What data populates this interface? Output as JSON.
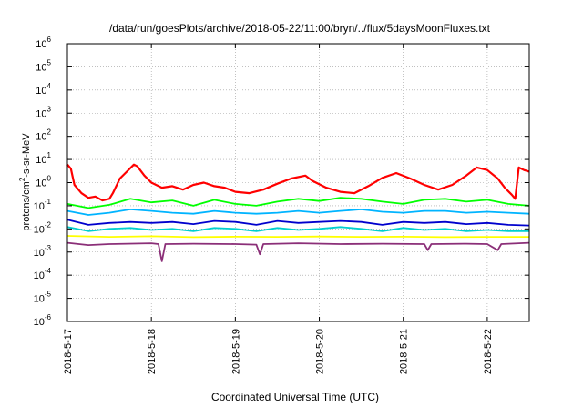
{
  "chart_data": {
    "type": "line",
    "title": "/data/run/goesPlots/archive/2018-05-22/11:00/bryn/../flux/5daysMoonFluxes.txt",
    "xlabel": "Coordinated Universal Time (UTC)",
    "ylabel_parts": [
      "protons/cm",
      "2",
      "-s-sr-MeV"
    ],
    "y_scale": "log",
    "ylim": [
      1e-06,
      1000000.0
    ],
    "y_ticks": [
      {
        "base": "10",
        "exp": "-6"
      },
      {
        "base": "10",
        "exp": "-5"
      },
      {
        "base": "10",
        "exp": "-4"
      },
      {
        "base": "10",
        "exp": "-3"
      },
      {
        "base": "10",
        "exp": "-2"
      },
      {
        "base": "10",
        "exp": "-1"
      },
      {
        "base": "10",
        "exp": "0"
      },
      {
        "base": "10",
        "exp": "1"
      },
      {
        "base": "10",
        "exp": "2"
      },
      {
        "base": "10",
        "exp": "3"
      },
      {
        "base": "10",
        "exp": "4"
      },
      {
        "base": "10",
        "exp": "5"
      },
      {
        "base": "10",
        "exp": "6"
      }
    ],
    "x_ticks": [
      "2018-5-17",
      "2018-5-18",
      "2018-5-19",
      "2018-5-20",
      "2018-5-21",
      "2018-5-22"
    ],
    "xlim": [
      "2018-05-17T00:00",
      "2018-05-22T12:00"
    ],
    "grid": true,
    "series": [
      {
        "color": "#ff0000",
        "values": [
          [
            "2018-05-17T00:00",
            6
          ],
          [
            "2018-05-17T01:00",
            4
          ],
          [
            "2018-05-17T02:00",
            0.8
          ],
          [
            "2018-05-17T04:00",
            0.35
          ],
          [
            "2018-05-17T06:00",
            0.22
          ],
          [
            "2018-05-17T08:00",
            0.25
          ],
          [
            "2018-05-17T10:00",
            0.17
          ],
          [
            "2018-05-17T12:00",
            0.2
          ],
          [
            "2018-05-17T13:00",
            0.35
          ],
          [
            "2018-05-17T15:00",
            1.5
          ],
          [
            "2018-05-17T17:00",
            3
          ],
          [
            "2018-05-17T19:00",
            6
          ],
          [
            "2018-05-17T20:00",
            5
          ],
          [
            "2018-05-17T22:00",
            2
          ],
          [
            "2018-05-18T00:00",
            1
          ],
          [
            "2018-05-18T03:00",
            0.6
          ],
          [
            "2018-05-18T06:00",
            0.7
          ],
          [
            "2018-05-18T09:00",
            0.5
          ],
          [
            "2018-05-18T12:00",
            0.8
          ],
          [
            "2018-05-18T15:00",
            1
          ],
          [
            "2018-05-18T18:00",
            0.7
          ],
          [
            "2018-05-18T21:00",
            0.6
          ],
          [
            "2018-05-19T00:00",
            0.4
          ],
          [
            "2018-05-19T04:00",
            0.35
          ],
          [
            "2018-05-19T08:00",
            0.5
          ],
          [
            "2018-05-19T12:00",
            0.9
          ],
          [
            "2018-05-19T16:00",
            1.5
          ],
          [
            "2018-05-19T20:00",
            2
          ],
          [
            "2018-05-19T22:00",
            1.2
          ],
          [
            "2018-05-20T02:00",
            0.6
          ],
          [
            "2018-05-20T06:00",
            0.4
          ],
          [
            "2018-05-20T10:00",
            0.35
          ],
          [
            "2018-05-20T14:00",
            0.7
          ],
          [
            "2018-05-20T18:00",
            1.6
          ],
          [
            "2018-05-20T22:00",
            2.6
          ],
          [
            "2018-05-21T02:00",
            1.5
          ],
          [
            "2018-05-21T06:00",
            0.8
          ],
          [
            "2018-05-21T10:00",
            0.5
          ],
          [
            "2018-05-21T14:00",
            0.8
          ],
          [
            "2018-05-21T18:00",
            2
          ],
          [
            "2018-05-21T21:00",
            4.5
          ],
          [
            "2018-05-22T00:00",
            3.5
          ],
          [
            "2018-05-22T03:00",
            1.5
          ],
          [
            "2018-05-22T05:00",
            0.6
          ],
          [
            "2018-05-22T07:00",
            0.3
          ],
          [
            "2018-05-22T08:00",
            0.2
          ],
          [
            "2018-05-22T09:00",
            4.5
          ],
          [
            "2018-05-22T10:30",
            3.5
          ],
          [
            "2018-05-22T12:00",
            3
          ]
        ]
      },
      {
        "color": "#00ff00",
        "values": [
          [
            "2018-05-17T00:00",
            0.12
          ],
          [
            "2018-05-17T06:00",
            0.08
          ],
          [
            "2018-05-17T12:00",
            0.11
          ],
          [
            "2018-05-17T18:00",
            0.2
          ],
          [
            "2018-05-18T00:00",
            0.14
          ],
          [
            "2018-05-18T06:00",
            0.17
          ],
          [
            "2018-05-18T12:00",
            0.1
          ],
          [
            "2018-05-18T18:00",
            0.18
          ],
          [
            "2018-05-19T00:00",
            0.12
          ],
          [
            "2018-05-19T06:00",
            0.1
          ],
          [
            "2018-05-19T12:00",
            0.15
          ],
          [
            "2018-05-19T18:00",
            0.2
          ],
          [
            "2018-05-20T00:00",
            0.16
          ],
          [
            "2018-05-20T06:00",
            0.22
          ],
          [
            "2018-05-20T12:00",
            0.2
          ],
          [
            "2018-05-20T18:00",
            0.15
          ],
          [
            "2018-05-21T00:00",
            0.12
          ],
          [
            "2018-05-21T06:00",
            0.18
          ],
          [
            "2018-05-21T12:00",
            0.2
          ],
          [
            "2018-05-21T18:00",
            0.15
          ],
          [
            "2018-05-22T00:00",
            0.18
          ],
          [
            "2018-05-22T06:00",
            0.12
          ],
          [
            "2018-05-22T12:00",
            0.1
          ]
        ]
      },
      {
        "color": "#00b4ff",
        "values": [
          [
            "2018-05-17T00:00",
            0.06
          ],
          [
            "2018-05-17T06:00",
            0.04
          ],
          [
            "2018-05-17T12:00",
            0.05
          ],
          [
            "2018-05-17T18:00",
            0.07
          ],
          [
            "2018-05-18T00:00",
            0.06
          ],
          [
            "2018-05-18T06:00",
            0.05
          ],
          [
            "2018-05-18T12:00",
            0.045
          ],
          [
            "2018-05-18T18:00",
            0.06
          ],
          [
            "2018-05-19T00:00",
            0.05
          ],
          [
            "2018-05-19T06:00",
            0.045
          ],
          [
            "2018-05-19T12:00",
            0.05
          ],
          [
            "2018-05-19T18:00",
            0.06
          ],
          [
            "2018-05-20T00:00",
            0.05
          ],
          [
            "2018-05-20T06:00",
            0.06
          ],
          [
            "2018-05-20T12:00",
            0.07
          ],
          [
            "2018-05-20T18:00",
            0.055
          ],
          [
            "2018-05-21T00:00",
            0.05
          ],
          [
            "2018-05-21T06:00",
            0.06
          ],
          [
            "2018-05-21T12:00",
            0.06
          ],
          [
            "2018-05-21T18:00",
            0.05
          ],
          [
            "2018-05-22T00:00",
            0.055
          ],
          [
            "2018-05-22T06:00",
            0.05
          ],
          [
            "2018-05-22T12:00",
            0.045
          ]
        ]
      },
      {
        "color": "#0000cd",
        "values": [
          [
            "2018-05-17T00:00",
            0.025
          ],
          [
            "2018-05-17T06:00",
            0.015
          ],
          [
            "2018-05-17T12:00",
            0.018
          ],
          [
            "2018-05-17T18:00",
            0.02
          ],
          [
            "2018-05-18T00:00",
            0.018
          ],
          [
            "2018-05-18T06:00",
            0.02
          ],
          [
            "2018-05-18T12:00",
            0.016
          ],
          [
            "2018-05-18T18:00",
            0.022
          ],
          [
            "2018-05-19T00:00",
            0.02
          ],
          [
            "2018-05-19T06:00",
            0.015
          ],
          [
            "2018-05-19T12:00",
            0.022
          ],
          [
            "2018-05-19T18:00",
            0.018
          ],
          [
            "2018-05-20T00:00",
            0.02
          ],
          [
            "2018-05-20T06:00",
            0.022
          ],
          [
            "2018-05-20T12:00",
            0.02
          ],
          [
            "2018-05-20T18:00",
            0.015
          ],
          [
            "2018-05-21T00:00",
            0.02
          ],
          [
            "2018-05-21T06:00",
            0.018
          ],
          [
            "2018-05-21T12:00",
            0.02
          ],
          [
            "2018-05-21T18:00",
            0.016
          ],
          [
            "2018-05-22T00:00",
            0.018
          ],
          [
            "2018-05-22T06:00",
            0.015
          ],
          [
            "2018-05-22T12:00",
            0.014
          ]
        ]
      },
      {
        "color": "#00cfd0",
        "values": [
          [
            "2018-05-17T00:00",
            0.012
          ],
          [
            "2018-05-17T06:00",
            0.008
          ],
          [
            "2018-05-17T12:00",
            0.01
          ],
          [
            "2018-05-17T18:00",
            0.011
          ],
          [
            "2018-05-18T00:00",
            0.009
          ],
          [
            "2018-05-18T06:00",
            0.01
          ],
          [
            "2018-05-18T12:00",
            0.008
          ],
          [
            "2018-05-18T18:00",
            0.011
          ],
          [
            "2018-05-19T00:00",
            0.01
          ],
          [
            "2018-05-19T06:00",
            0.008
          ],
          [
            "2018-05-19T12:00",
            0.011
          ],
          [
            "2018-05-19T18:00",
            0.009
          ],
          [
            "2018-05-20T00:00",
            0.01
          ],
          [
            "2018-05-20T06:00",
            0.012
          ],
          [
            "2018-05-20T12:00",
            0.01
          ],
          [
            "2018-05-20T18:00",
            0.008
          ],
          [
            "2018-05-21T00:00",
            0.011
          ],
          [
            "2018-05-21T06:00",
            0.009
          ],
          [
            "2018-05-21T12:00",
            0.01
          ],
          [
            "2018-05-21T18:00",
            0.008
          ],
          [
            "2018-05-22T00:00",
            0.009
          ],
          [
            "2018-05-22T06:00",
            0.008
          ],
          [
            "2018-05-22T12:00",
            0.008
          ]
        ]
      },
      {
        "color": "#ffff00",
        "values": [
          [
            "2018-05-17T00:00",
            0.005
          ],
          [
            "2018-05-17T12:00",
            0.0045
          ],
          [
            "2018-05-18T00:00",
            0.0048
          ],
          [
            "2018-05-18T12:00",
            0.0044
          ],
          [
            "2018-05-19T00:00",
            0.0046
          ],
          [
            "2018-05-19T12:00",
            0.0045
          ],
          [
            "2018-05-20T00:00",
            0.0047
          ],
          [
            "2018-05-20T12:00",
            0.0045
          ],
          [
            "2018-05-21T00:00",
            0.0046
          ],
          [
            "2018-05-21T12:00",
            0.0044
          ],
          [
            "2018-05-22T00:00",
            0.0045
          ],
          [
            "2018-05-22T12:00",
            0.0045
          ]
        ]
      },
      {
        "color": "#8b2f78",
        "values": [
          [
            "2018-05-17T00:00",
            0.0025
          ],
          [
            "2018-05-17T06:00",
            0.002
          ],
          [
            "2018-05-17T12:00",
            0.0022
          ],
          [
            "2018-05-18T00:00",
            0.0024
          ],
          [
            "2018-05-18T02:00",
            0.0022
          ],
          [
            "2018-05-18T03:00",
            0.0004
          ],
          [
            "2018-05-18T04:00",
            0.0022
          ],
          [
            "2018-05-18T12:00",
            0.0023
          ],
          [
            "2018-05-19T00:00",
            0.0022
          ],
          [
            "2018-05-19T06:00",
            0.0021
          ],
          [
            "2018-05-19T07:00",
            0.0008
          ],
          [
            "2018-05-19T08:00",
            0.0022
          ],
          [
            "2018-05-19T18:00",
            0.0024
          ],
          [
            "2018-05-20T06:00",
            0.0022
          ],
          [
            "2018-05-20T18:00",
            0.0023
          ],
          [
            "2018-05-21T06:00",
            0.0022
          ],
          [
            "2018-05-21T07:00",
            0.0012
          ],
          [
            "2018-05-21T08:00",
            0.0022
          ],
          [
            "2018-05-21T18:00",
            0.0023
          ],
          [
            "2018-05-22T00:00",
            0.0022
          ],
          [
            "2018-05-22T03:00",
            0.0012
          ],
          [
            "2018-05-22T04:00",
            0.0022
          ],
          [
            "2018-05-22T12:00",
            0.0025
          ]
        ]
      }
    ]
  }
}
